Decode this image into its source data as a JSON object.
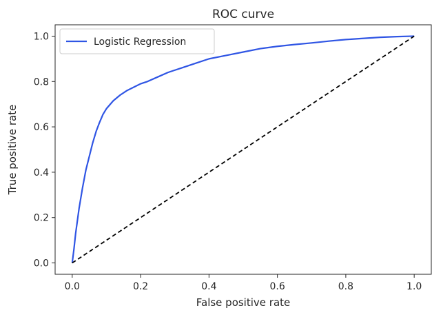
{
  "chart_data": {
    "type": "line",
    "title": "ROC curve",
    "xlabel": "False positive rate",
    "ylabel": "True positive rate",
    "xlim": [
      -0.05,
      1.05
    ],
    "ylim": [
      -0.05,
      1.05
    ],
    "xticks": [
      0.0,
      0.2,
      0.4,
      0.6,
      0.8,
      1.0
    ],
    "yticks": [
      0.0,
      0.2,
      0.4,
      0.6,
      0.8,
      1.0
    ],
    "xtick_labels": [
      "0.0",
      "0.2",
      "0.4",
      "0.6",
      "0.8",
      "1.0"
    ],
    "ytick_labels": [
      "0.0",
      "0.2",
      "0.4",
      "0.6",
      "0.8",
      "1.0"
    ],
    "grid": false,
    "legend_position": "top-left",
    "series": [
      {
        "name": "Logistic Regression",
        "color": "#2f55e4",
        "style": "solid",
        "x": [
          0.0,
          0.005,
          0.01,
          0.02,
          0.03,
          0.04,
          0.05,
          0.06,
          0.07,
          0.08,
          0.09,
          0.1,
          0.12,
          0.14,
          0.16,
          0.18,
          0.2,
          0.22,
          0.25,
          0.28,
          0.32,
          0.36,
          0.4,
          0.45,
          0.5,
          0.55,
          0.6,
          0.65,
          0.7,
          0.75,
          0.8,
          0.85,
          0.9,
          0.95,
          1.0
        ],
        "y": [
          0.0,
          0.06,
          0.13,
          0.24,
          0.33,
          0.41,
          0.47,
          0.53,
          0.58,
          0.62,
          0.655,
          0.68,
          0.715,
          0.74,
          0.76,
          0.775,
          0.79,
          0.8,
          0.82,
          0.84,
          0.86,
          0.88,
          0.9,
          0.915,
          0.93,
          0.945,
          0.955,
          0.963,
          0.97,
          0.978,
          0.985,
          0.99,
          0.995,
          0.998,
          1.0
        ]
      },
      {
        "name": "",
        "color": "#000000",
        "style": "dashed",
        "x": [
          0.0,
          1.0
        ],
        "y": [
          0.0,
          1.0
        ]
      }
    ]
  }
}
